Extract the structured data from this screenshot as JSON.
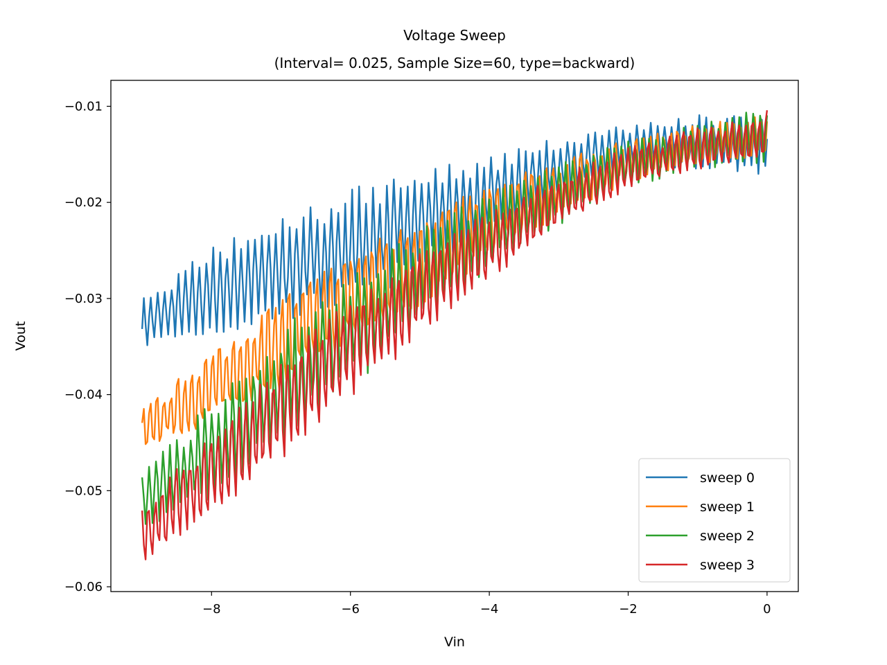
{
  "chart_data": {
    "type": "line",
    "title": "Voltage Sweep",
    "subtitle": "(Interval= 0.025, Sample Size=60, type=backward)",
    "xlabel": "Vin",
    "ylabel": "Vout",
    "xlim": [
      -9.45,
      0.45
    ],
    "ylim": [
      -0.0605,
      -0.0073
    ],
    "xticks": [
      -8,
      -6,
      -4,
      -2,
      0
    ],
    "xtick_labels": [
      "−8",
      "−6",
      "−4",
      "−2",
      "0"
    ],
    "yticks": [
      -0.01,
      -0.02,
      -0.03,
      -0.04,
      -0.05,
      -0.06
    ],
    "ytick_labels": [
      "−0.01",
      "−0.02",
      "−0.03",
      "−0.04",
      "−0.05",
      "−0.06"
    ],
    "grid": false,
    "legend_position": "lower-right",
    "x_range": [
      -9,
      0
    ],
    "x_step": 0.025,
    "series": [
      {
        "name": "sweep 0",
        "color": "#1f77b4",
        "envelope_x": [
          -9,
          -8,
          -7,
          -6,
          -5,
          -4,
          -3,
          -2,
          -1,
          0
        ],
        "envelope_upper": [
          -0.03,
          -0.0245,
          -0.0215,
          -0.0185,
          -0.0165,
          -0.0152,
          -0.0132,
          -0.0118,
          -0.0108,
          -0.0105
        ],
        "envelope_lower": [
          -0.0352,
          -0.0342,
          -0.0325,
          -0.031,
          -0.0275,
          -0.0235,
          -0.0195,
          -0.017,
          -0.0165,
          -0.0172
        ]
      },
      {
        "name": "sweep 1",
        "color": "#ff7f0e",
        "envelope_x": [
          -9,
          -8,
          -7,
          -6,
          -5,
          -4,
          -3,
          -2,
          -1,
          0
        ],
        "envelope_upper": [
          -0.041,
          -0.0345,
          -0.0285,
          -0.024,
          -0.0205,
          -0.0172,
          -0.015,
          -0.0128,
          -0.0115,
          -0.01
        ],
        "envelope_lower": [
          -0.0468,
          -0.0438,
          -0.0405,
          -0.036,
          -0.032,
          -0.027,
          -0.022,
          -0.0185,
          -0.0165,
          -0.0158
        ]
      },
      {
        "name": "sweep 2",
        "color": "#2ca02c",
        "envelope_x": [
          -9,
          -8,
          -7,
          -6,
          -5,
          -4,
          -3,
          -2,
          -1,
          0
        ],
        "envelope_upper": [
          -0.048,
          -0.0405,
          -0.033,
          -0.027,
          -0.0225,
          -0.019,
          -0.0158,
          -0.0135,
          -0.0118,
          -0.01
        ],
        "envelope_lower": [
          -0.0545,
          -0.051,
          -0.0455,
          -0.0395,
          -0.033,
          -0.027,
          -0.0225,
          -0.0185,
          -0.0165,
          -0.016
        ]
      },
      {
        "name": "sweep 3",
        "color": "#d62728",
        "envelope_x": [
          -9,
          -8,
          -7,
          -6,
          -5,
          -4,
          -3,
          -2,
          -1,
          0
        ],
        "envelope_upper": [
          -0.051,
          -0.0435,
          -0.0355,
          -0.029,
          -0.0245,
          -0.0205,
          -0.0168,
          -0.014,
          -0.012,
          -0.01
        ],
        "envelope_lower": [
          -0.0578,
          -0.0535,
          -0.0475,
          -0.0415,
          -0.0345,
          -0.0285,
          -0.023,
          -0.019,
          -0.0168,
          -0.016
        ]
      }
    ]
  }
}
